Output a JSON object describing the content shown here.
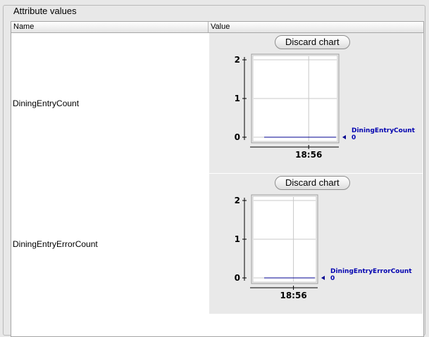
{
  "group_title": "Attribute values",
  "table": {
    "columns": [
      "Name",
      "Value"
    ],
    "rows": [
      {
        "name": "DiningEntryCount",
        "discard_label": "Discard chart",
        "chart_data": {
          "type": "line",
          "title": "",
          "xlabel": "",
          "ylabel": "",
          "ylim": [
            0,
            2
          ],
          "yticks": [
            "0",
            "1",
            "2"
          ],
          "xticks": [
            "18:56"
          ],
          "grid": true,
          "legend_position": "right",
          "series": [
            {
              "name": "DiningEntryCount",
              "current_value": "0",
              "color": "#000090",
              "values": [
                0,
                0
              ]
            }
          ]
        }
      },
      {
        "name": "DiningEntryErrorCount",
        "discard_label": "Discard chart",
        "chart_data": {
          "type": "line",
          "title": "",
          "xlabel": "",
          "ylabel": "",
          "ylim": [
            0,
            2
          ],
          "yticks": [
            "0",
            "1",
            "2"
          ],
          "xticks": [
            "18:56"
          ],
          "grid": true,
          "legend_position": "right",
          "series": [
            {
              "name": "DiningEntryErrorCount",
              "current_value": "0",
              "color": "#000090",
              "values": [
                0,
                0
              ]
            }
          ]
        }
      }
    ]
  }
}
